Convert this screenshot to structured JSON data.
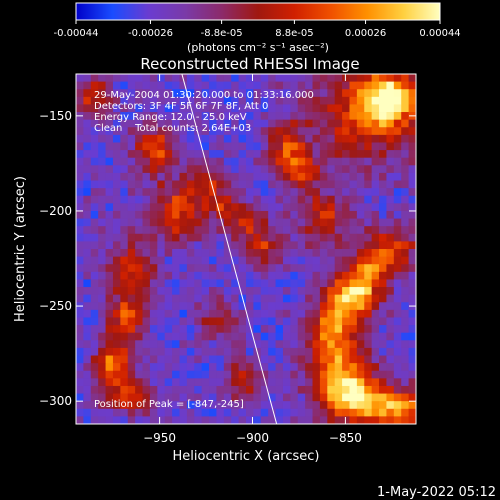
{
  "colorbar": {
    "tick_labels": [
      "-0.00044",
      "-0.00026",
      "-8.8e-05",
      "8.8e-05",
      "0.00026",
      "0.00044"
    ],
    "tick_values": [
      -0.00044,
      -0.00026,
      -8.8e-05,
      8.8e-05,
      0.00026,
      0.00044
    ],
    "range": [
      -0.00044,
      0.00044
    ],
    "unit_label": "(photons cm⁻² s⁻¹ asec⁻²)",
    "colormap": [
      "#0000c8",
      "#1a4cff",
      "#6a3cd0",
      "#7a3aa8",
      "#8c2a6a",
      "#a01810",
      "#d02000",
      "#f05000",
      "#ff9000",
      "#ffd040",
      "#ffffc0"
    ]
  },
  "chart_data": {
    "type": "heatmap",
    "title": "Reconstructed RHESSI Image",
    "xlabel": "Heliocentric X (arcsec)",
    "ylabel": "Heliocentric Y (arcsec)",
    "xlim": [
      -995,
      -812
    ],
    "ylim": [
      -312,
      -128
    ],
    "xticks": [
      -950,
      -900,
      -850
    ],
    "yticks": [
      -150,
      -200,
      -250,
      -300
    ],
    "xtick_labels": [
      "−950",
      "−900",
      "−850"
    ],
    "ytick_labels": [
      "−150",
      "−200",
      "−250",
      "−300"
    ],
    "limb_line": [
      [
        -938,
        -128
      ],
      [
        -887,
        -312
      ]
    ],
    "peak": [
      -847,
      -245
    ],
    "grid": false
  },
  "info": {
    "lines": [
      "29-May-2004 01:30:20.000 to 01:33:16.000",
      "Detectors: 3F 4F 5F 6F 7F 8F, Att 0",
      "Energy Range: 12.0 - 25.0 keV",
      "Clean    Total counts: 2.64E+03"
    ],
    "peak_label": "Position of Peak = [-847,-245]"
  },
  "footer": {
    "timestamp": "1-May-2022 05:12"
  }
}
